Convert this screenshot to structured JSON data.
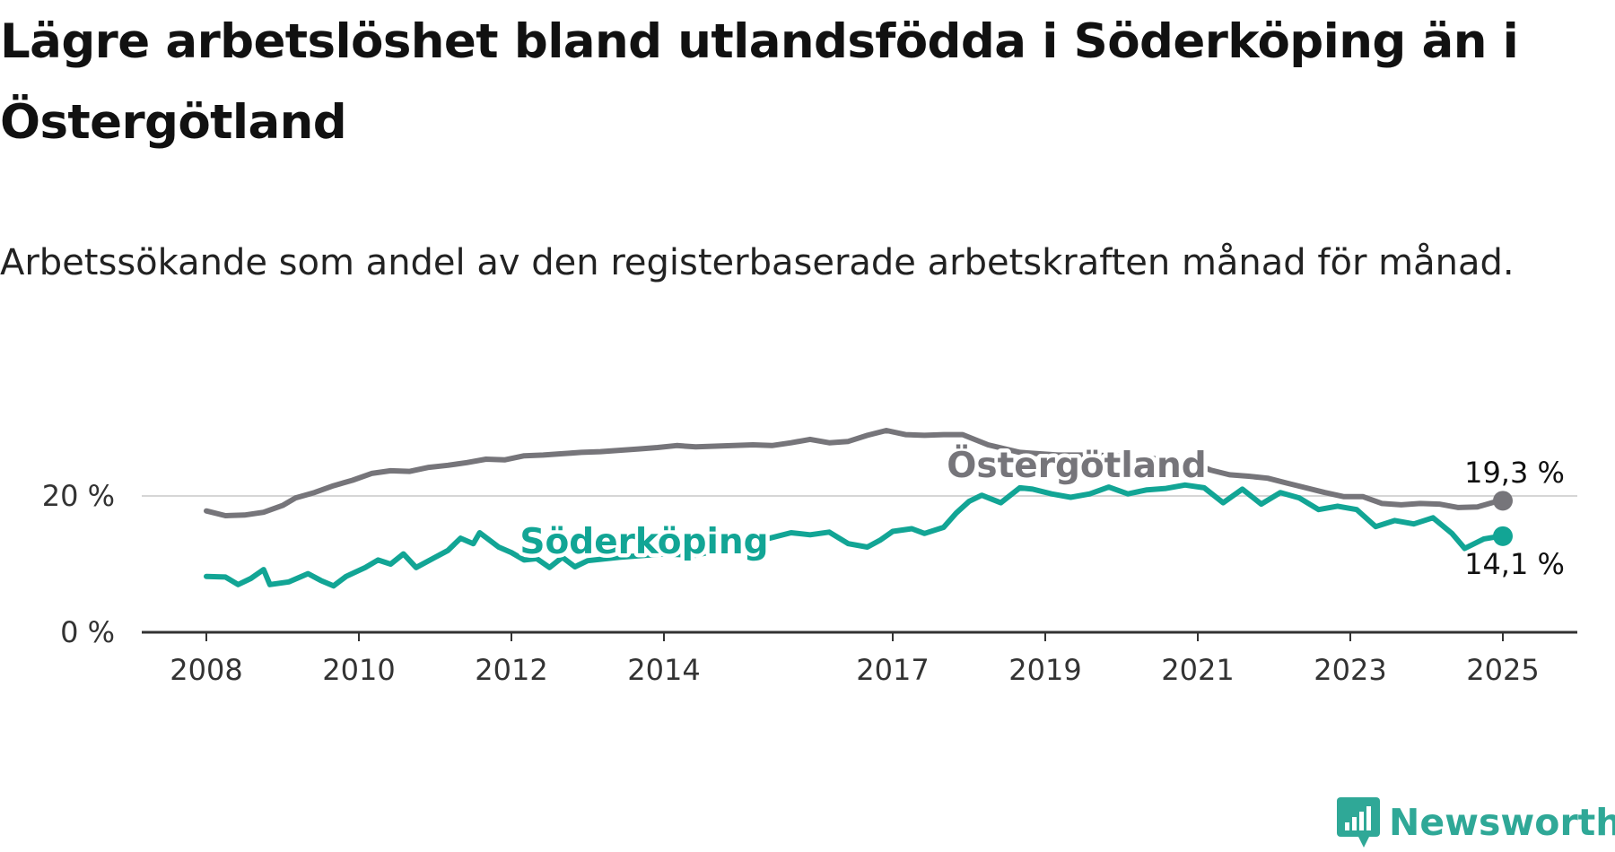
{
  "title": "Lägre arbetslöshet bland utlandsfödda i Söderköping än i Östergötland",
  "subtitle": "Arbetssökande som andel av den registerbaserade arbetskraften månad för månad.",
  "brand": "Newsworthy",
  "colors": {
    "ostergotland": "#76757a",
    "soderkoping": "#12a595",
    "gridline": "#d6d6d6",
    "axis": "#333333",
    "brand": "#2fa897"
  },
  "chart_data": {
    "type": "line",
    "x_ticks": [
      "2008",
      "2010",
      "2012",
      "2014",
      "2017",
      "2019",
      "2021",
      "2023",
      "2025"
    ],
    "y_ticks": [
      "0 %",
      "20 %"
    ],
    "ylim": [
      0,
      30
    ],
    "grid": "horizontal",
    "series": [
      {
        "name": "Östergötland",
        "end_label": "19,3 %",
        "end_value": 19.3,
        "points": [
          [
            "2008-01",
            17.8
          ],
          [
            "2008-04",
            17.1
          ],
          [
            "2008-07",
            17.2
          ],
          [
            "2008-10",
            17.6
          ],
          [
            "2009-01",
            18.6
          ],
          [
            "2009-03",
            19.7
          ],
          [
            "2009-06",
            20.5
          ],
          [
            "2009-09",
            21.5
          ],
          [
            "2009-12",
            22.3
          ],
          [
            "2010-03",
            23.3
          ],
          [
            "2010-06",
            23.7
          ],
          [
            "2010-09",
            23.6
          ],
          [
            "2010-12",
            24.2
          ],
          [
            "2011-03",
            24.5
          ],
          [
            "2011-06",
            24.9
          ],
          [
            "2011-09",
            25.4
          ],
          [
            "2011-12",
            25.3
          ],
          [
            "2012-03",
            25.9
          ],
          [
            "2012-06",
            26.0
          ],
          [
            "2012-09",
            26.2
          ],
          [
            "2012-12",
            26.4
          ],
          [
            "2013-03",
            26.5
          ],
          [
            "2013-06",
            26.7
          ],
          [
            "2013-09",
            26.9
          ],
          [
            "2013-12",
            27.1
          ],
          [
            "2014-03",
            27.4
          ],
          [
            "2014-06",
            27.2
          ],
          [
            "2014-09",
            27.3
          ],
          [
            "2014-12",
            27.4
          ],
          [
            "2015-03",
            27.5
          ],
          [
            "2015-06",
            27.4
          ],
          [
            "2015-09",
            27.8
          ],
          [
            "2015-12",
            28.3
          ],
          [
            "2016-03",
            27.8
          ],
          [
            "2016-06",
            28.0
          ],
          [
            "2016-09",
            28.9
          ],
          [
            "2016-12",
            29.6
          ],
          [
            "2017-03",
            29.0
          ],
          [
            "2017-06",
            28.9
          ],
          [
            "2017-09",
            29.0
          ],
          [
            "2017-12",
            29.0
          ],
          [
            "2018-04",
            27.5
          ],
          [
            "2018-09",
            26.4
          ],
          [
            "2019-03",
            26.0
          ],
          [
            "2019-09",
            26.0
          ],
          [
            "2020-06",
            25.5
          ],
          [
            "2020-12",
            24.9
          ],
          [
            "2021-03",
            23.8
          ],
          [
            "2021-06",
            23.1
          ],
          [
            "2021-09",
            22.9
          ],
          [
            "2021-12",
            22.6
          ],
          [
            "2022-03",
            21.9
          ],
          [
            "2022-06",
            21.2
          ],
          [
            "2022-09",
            20.5
          ],
          [
            "2022-12",
            19.9
          ],
          [
            "2023-03",
            19.9
          ],
          [
            "2023-06",
            18.9
          ],
          [
            "2023-09",
            18.7
          ],
          [
            "2023-12",
            18.9
          ],
          [
            "2024-03",
            18.8
          ],
          [
            "2024-06",
            18.3
          ],
          [
            "2024-09",
            18.4
          ],
          [
            "2024-12",
            19.2
          ],
          [
            "2025-01",
            19.3
          ]
        ]
      },
      {
        "name": "Söderköping",
        "end_label": "14,1 %",
        "end_value": 14.1,
        "points": [
          [
            "2008-01",
            8.2
          ],
          [
            "2008-04",
            8.1
          ],
          [
            "2008-06",
            7.0
          ],
          [
            "2008-08",
            7.9
          ],
          [
            "2008-10",
            9.2
          ],
          [
            "2008-11",
            7.0
          ],
          [
            "2009-02",
            7.4
          ],
          [
            "2009-05",
            8.6
          ],
          [
            "2009-07",
            7.6
          ],
          [
            "2009-09",
            6.8
          ],
          [
            "2009-11",
            8.2
          ],
          [
            "2010-02",
            9.5
          ],
          [
            "2010-04",
            10.6
          ],
          [
            "2010-06",
            10.0
          ],
          [
            "2010-08",
            11.5
          ],
          [
            "2010-10",
            9.5
          ],
          [
            "2011-01",
            11.0
          ],
          [
            "2011-03",
            12.0
          ],
          [
            "2011-05",
            13.8
          ],
          [
            "2011-07",
            13.0
          ],
          [
            "2011-08",
            14.6
          ],
          [
            "2011-11",
            12.5
          ],
          [
            "2012-01",
            11.7
          ],
          [
            "2012-03",
            10.6
          ],
          [
            "2012-05",
            10.8
          ],
          [
            "2012-07",
            9.5
          ],
          [
            "2012-09",
            11.0
          ],
          [
            "2012-11",
            9.6
          ],
          [
            "2013-01",
            10.5
          ],
          [
            "2013-06",
            11.0
          ],
          [
            "2014-01",
            11.5
          ],
          [
            "2014-06",
            11.3
          ],
          [
            "2015-01",
            12.8
          ],
          [
            "2015-06",
            13.9
          ],
          [
            "2015-09",
            14.6
          ],
          [
            "2015-12",
            14.3
          ],
          [
            "2016-03",
            14.7
          ],
          [
            "2016-06",
            13.0
          ],
          [
            "2016-09",
            12.5
          ],
          [
            "2016-11",
            13.5
          ],
          [
            "2017-01",
            14.8
          ],
          [
            "2017-04",
            15.2
          ],
          [
            "2017-06",
            14.5
          ],
          [
            "2017-09",
            15.4
          ],
          [
            "2017-11",
            17.5
          ],
          [
            "2018-01",
            19.2
          ],
          [
            "2018-03",
            20.1
          ],
          [
            "2018-06",
            19.0
          ],
          [
            "2018-09",
            21.2
          ],
          [
            "2018-11",
            21.0
          ],
          [
            "2019-02",
            20.3
          ],
          [
            "2019-05",
            19.8
          ],
          [
            "2019-08",
            20.3
          ],
          [
            "2019-11",
            21.3
          ],
          [
            "2020-02",
            20.3
          ],
          [
            "2020-05",
            20.9
          ],
          [
            "2020-08",
            21.1
          ],
          [
            "2020-11",
            21.6
          ],
          [
            "2021-02",
            21.2
          ],
          [
            "2021-05",
            19.0
          ],
          [
            "2021-08",
            21.0
          ],
          [
            "2021-11",
            18.8
          ],
          [
            "2022-02",
            20.5
          ],
          [
            "2022-05",
            19.7
          ],
          [
            "2022-08",
            18.0
          ],
          [
            "2022-11",
            18.5
          ],
          [
            "2023-02",
            18.0
          ],
          [
            "2023-05",
            15.5
          ],
          [
            "2023-08",
            16.4
          ],
          [
            "2023-11",
            15.9
          ],
          [
            "2024-02",
            16.8
          ],
          [
            "2024-05",
            14.5
          ],
          [
            "2024-07",
            12.3
          ],
          [
            "2024-10",
            13.7
          ],
          [
            "2024-12",
            14.0
          ],
          [
            "2025-01",
            14.1
          ]
        ]
      }
    ]
  }
}
